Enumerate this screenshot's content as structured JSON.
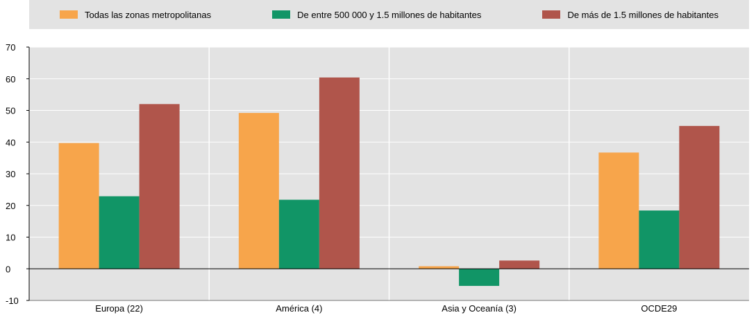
{
  "chart_data": {
    "type": "bar",
    "categories": [
      "Europa (22)",
      "América (4)",
      "Asia y Oceanía (3)",
      "OCDE29"
    ],
    "series": [
      {
        "name": "Todas las zonas metropolitanas",
        "color": "#f7a54b",
        "values": [
          39.7,
          49.2,
          0.8,
          36.7
        ]
      },
      {
        "name": "De entre 500 000 y 1.5 millones de habitantes",
        "color": "#119566",
        "values": [
          22.9,
          21.8,
          -5.4,
          18.4
        ]
      },
      {
        "name": "De más de 1.5 millones de habitantes",
        "color": "#b0554b",
        "values": [
          52.0,
          60.4,
          2.6,
          45.1
        ]
      }
    ],
    "yticks": [
      -10,
      0,
      10,
      20,
      30,
      40,
      50,
      60,
      70
    ],
    "ylim": [
      -10,
      70
    ],
    "grid": true,
    "legend_position": "top",
    "background": "#e3e3e3"
  }
}
